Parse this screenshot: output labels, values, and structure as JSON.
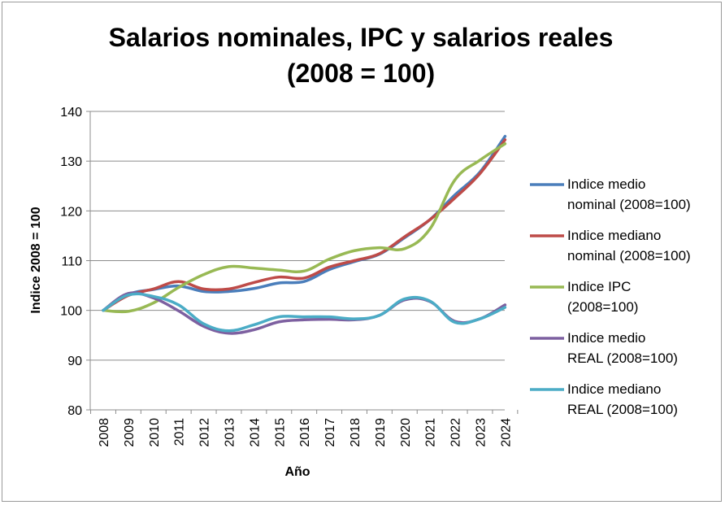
{
  "chart_data": {
    "type": "line",
    "title": [
      "Salarios nominales, IPC y salarios reales",
      "(2008 = 100)"
    ],
    "xlabel": "Año",
    "ylabel": "Indice 2008 = 100",
    "ylim": [
      80,
      140
    ],
    "yticks": [
      80,
      90,
      100,
      110,
      120,
      130,
      140
    ],
    "grid": "horizontal",
    "legend_position": "right",
    "categories": [
      "2008",
      "2009",
      "2010",
      "2011",
      "2012",
      "2013",
      "2014",
      "2015",
      "2016",
      "2017",
      "2018",
      "2019",
      "2020",
      "2021",
      "2022",
      "2023",
      "2024"
    ],
    "series": [
      {
        "name": [
          "Indice medio",
          "nominal (2008=100)"
        ],
        "color": "#4a7ebb",
        "values": [
          100,
          103.2,
          104.2,
          104.9,
          103.8,
          103.8,
          104.4,
          105.5,
          105.8,
          108.2,
          109.8,
          111.3,
          114.6,
          118.2,
          123.2,
          127.8,
          135.0
        ]
      },
      {
        "name": [
          "Indice mediano",
          "nominal (2008=100)"
        ],
        "color": "#be4b48",
        "values": [
          100,
          103.0,
          104.3,
          105.8,
          104.3,
          104.3,
          105.6,
          106.7,
          106.5,
          108.7,
          110.0,
          111.4,
          114.8,
          118.2,
          122.6,
          127.5,
          134.3
        ]
      },
      {
        "name": [
          "Indice IPC",
          "(2008=100)"
        ],
        "color": "#98b954",
        "values": [
          100,
          99.8,
          101.5,
          104.6,
          107.2,
          108.8,
          108.5,
          108.1,
          107.9,
          110.3,
          112.0,
          112.6,
          112.4,
          116.3,
          126.2,
          130.2,
          133.5
        ]
      },
      {
        "name": [
          "Indice medio",
          "REAL (2008=100)"
        ],
        "color": "#7d60a0",
        "values": [
          100,
          103.4,
          102.5,
          99.9,
          96.8,
          95.4,
          96.1,
          97.7,
          98.1,
          98.2,
          98.1,
          99.0,
          102.1,
          101.8,
          97.8,
          98.3,
          101.1
        ]
      },
      {
        "name": [
          "Indice mediano",
          "REAL (2008=100)"
        ],
        "color": "#4bacc6",
        "values": [
          100,
          103.1,
          102.8,
          101.1,
          97.3,
          95.9,
          97.1,
          98.7,
          98.7,
          98.7,
          98.3,
          99.0,
          102.3,
          101.9,
          97.6,
          98.3,
          100.6
        ]
      }
    ]
  }
}
